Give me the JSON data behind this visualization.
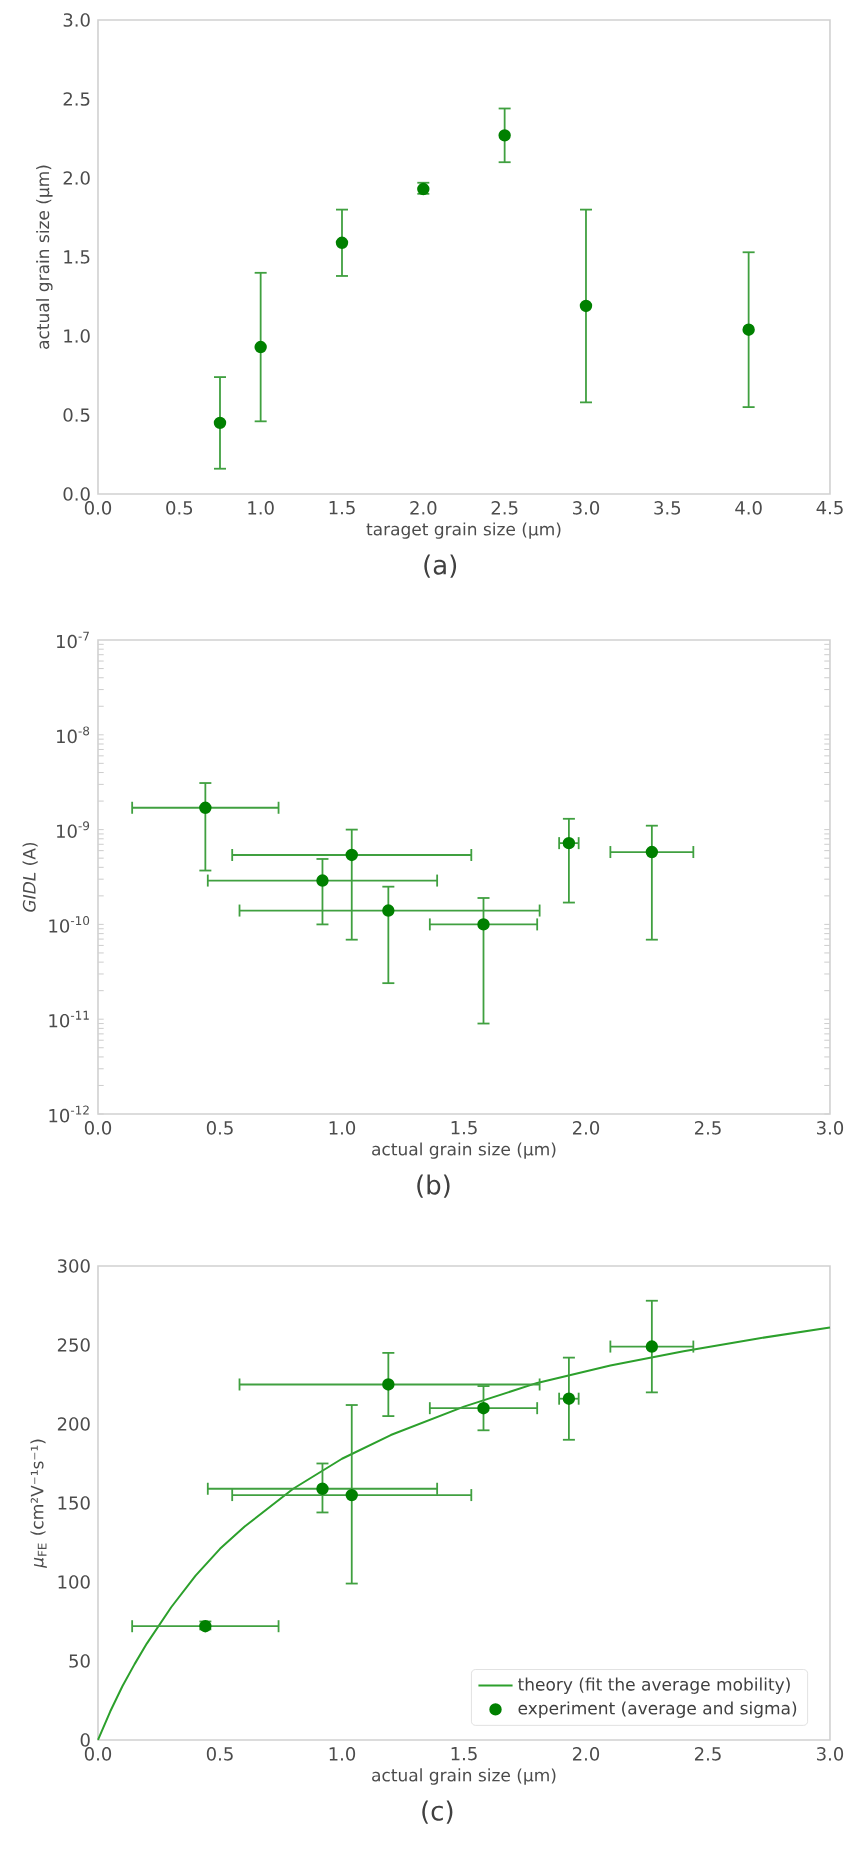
{
  "chart_data": [
    {
      "type": "scatter",
      "xlabel": "taraget grain size (µm)",
      "ylabel": "actual grain size (µm)",
      "annotations": [
        "(a)"
      ],
      "marker": "circle",
      "color": "#008000",
      "x": [
        0.75,
        1.0,
        1.5,
        2.0,
        2.5,
        3.0,
        4.0
      ],
      "values": [
        0.45,
        0.93,
        1.59,
        1.93,
        2.27,
        1.19,
        1.04
      ],
      "errors": [
        [
          0.16,
          0.74
        ],
        [
          0.46,
          1.4
        ],
        [
          1.38,
          1.8
        ],
        [
          1.9,
          1.97
        ],
        [
          2.1,
          2.44
        ],
        [
          0.58,
          1.8
        ],
        [
          0.55,
          1.53
        ]
      ],
      "xlim": [
        0,
        4.5
      ],
      "xticks": [
        {
          "value": 0,
          "label": "0.0"
        },
        0.5,
        {
          "value": 1,
          "label": "1.0"
        },
        1.5,
        {
          "value": 2,
          "label": "2.0"
        },
        2.5,
        {
          "value": 3,
          "label": "3.0"
        },
        3.5,
        {
          "value": 4,
          "label": "4.0"
        },
        4.5
      ],
      "ylim": [
        0,
        3
      ],
      "yticks": [
        {
          "value": 0,
          "label": "0.0"
        },
        0.5,
        {
          "value": 1,
          "label": "1.0"
        },
        1.5,
        {
          "value": 2,
          "label": "2.0"
        },
        2.5,
        {
          "value": 3,
          "label": "3.0"
        }
      ]
    },
    {
      "type": "scatter",
      "xlabel": "actual grain size (µm)",
      "ylabel": "*GIDL* (A)",
      "annotations": [
        "(b)"
      ],
      "marker": "circle",
      "color": "#008000",
      "log": "y",
      "x": [
        0.44,
        0.92,
        1.04,
        1.19,
        1.58,
        1.93,
        2.27
      ],
      "values": [
        1.7e-09,
        2.9e-10,
        5.4e-10,
        1.4e-10,
        1e-10,
        7.2e-10,
        5.8e-10
      ],
      "errors": [
        [
          3.7e-10,
          3.1e-09
        ],
        [
          1e-10,
          4.9e-10
        ],
        [
          6.9e-11,
          1e-09
        ],
        [
          2.4e-11,
          2.5e-10
        ],
        [
          9e-12,
          1.9e-10
        ],
        [
          1.7e-10,
          1.3e-09
        ],
        [
          6.9e-11,
          1.1e-09
        ]
      ],
      "xerrors": [
        [
          0.14,
          0.74
        ],
        [
          0.45,
          1.39
        ],
        [
          0.55,
          1.53
        ],
        [
          0.58,
          1.81
        ],
        [
          1.36,
          1.8
        ],
        [
          1.89,
          1.97
        ],
        [
          2.1,
          2.44
        ]
      ],
      "xlim": [
        0,
        3
      ],
      "xticks": [
        {
          "value": 0,
          "label": "0.0"
        },
        0.5,
        {
          "value": 1,
          "label": "1.0"
        },
        1.5,
        {
          "value": 2,
          "label": "2.0"
        },
        2.5,
        {
          "value": 3,
          "label": "3.0"
        }
      ],
      "ylim": [
        1e-12,
        1e-07
      ],
      "yticks": [
        {
          "value": 1e-12,
          "label": "10$^{-12}$"
        },
        {
          "value": 1e-11,
          "label": "10$^{-11}$"
        },
        {
          "value": 1e-10,
          "label": "10$^{-10}$"
        },
        {
          "value": 1e-09,
          "label": "10$^{-9}$"
        },
        {
          "value": 1e-08,
          "label": "10$^{-8}$"
        },
        {
          "value": 1e-07,
          "label": "10$^{-7}$"
        }
      ]
    },
    {
      "type": "scatter",
      "xlabel": "actual grain size (µm)",
      "ylabel": "*μ*$_{FE}$ (cm²V⁻¹s⁻¹)",
      "annotations": [
        "(c)"
      ],
      "legend": "bottom right",
      "series": [
        {
          "type": "line",
          "name": "theory (fit the average mobility)",
          "color": "#2ca02c",
          "marker": "none",
          "x": [
            0,
            0.05,
            0.1,
            0.15,
            0.2,
            0.3,
            0.4,
            0.5,
            0.6,
            0.8,
            1.0,
            1.2,
            1.5,
            1.8,
            2.1,
            2.4,
            2.7,
            3.0
          ],
          "values": [
            0,
            18,
            34,
            48,
            61,
            84,
            104,
            121,
            135,
            159,
            178,
            193,
            211,
            226,
            237,
            246,
            254,
            261
          ]
        },
        {
          "type": "scatter",
          "name": "experiment (average and sigma)",
          "color": "#008000",
          "marker": "circle",
          "x": [
            0.44,
            0.92,
            1.04,
            1.19,
            1.58,
            1.93,
            2.27
          ],
          "values": [
            72,
            159,
            155,
            225,
            210,
            216,
            249
          ],
          "errors": [
            [
              70,
              75
            ],
            [
              144,
              175
            ],
            [
              99,
              212
            ],
            [
              205,
              245
            ],
            [
              196,
              224
            ],
            [
              190,
              242
            ],
            [
              220,
              278
            ]
          ],
          "xerrors": [
            [
              0.14,
              0.74
            ],
            [
              0.45,
              1.39
            ],
            [
              0.55,
              1.53
            ],
            [
              0.58,
              1.81
            ],
            [
              1.36,
              1.8
            ],
            [
              1.89,
              1.97
            ],
            [
              2.1,
              2.44
            ]
          ]
        }
      ],
      "xlim": [
        0,
        3
      ],
      "xticks": [
        {
          "value": 0,
          "label": "0.0"
        },
        0.5,
        {
          "value": 1,
          "label": "1.0"
        },
        1.5,
        {
          "value": 2,
          "label": "2.0"
        },
        2.5,
        {
          "value": 3,
          "label": "3.0"
        }
      ],
      "ylim": [
        0,
        300
      ],
      "yticks": [
        0,
        50,
        100,
        150,
        200,
        250,
        300
      ]
    }
  ]
}
